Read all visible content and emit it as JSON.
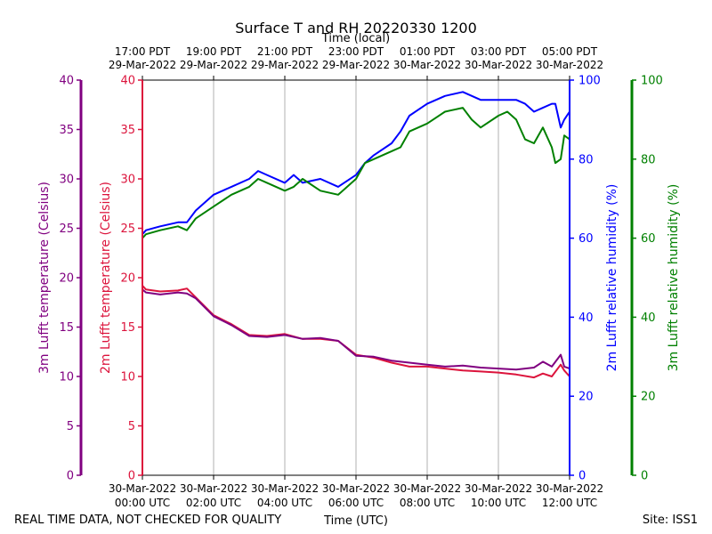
{
  "chart_data": {
    "type": "line",
    "title": "Surface T and RH 20220330 1200",
    "top_axis_label": "Time (local)",
    "bottom_axis_label": "Time (UTC)",
    "footer_left": "REAL TIME DATA, NOT CHECKED FOR QUALITY",
    "footer_right": "Site: ISS1",
    "x_ticks_utc": [
      {
        "hour": 0,
        "line1": "30-Mar-2022",
        "line2": "00:00 UTC"
      },
      {
        "hour": 2,
        "line1": "30-Mar-2022",
        "line2": "02:00 UTC"
      },
      {
        "hour": 4,
        "line1": "30-Mar-2022",
        "line2": "04:00 UTC"
      },
      {
        "hour": 6,
        "line1": "30-Mar-2022",
        "line2": "06:00 UTC"
      },
      {
        "hour": 8,
        "line1": "30-Mar-2022",
        "line2": "08:00 UTC"
      },
      {
        "hour": 10,
        "line1": "30-Mar-2022",
        "line2": "10:00 UTC"
      },
      {
        "hour": 12,
        "line1": "30-Mar-2022",
        "line2": "12:00 UTC"
      }
    ],
    "x_ticks_local": [
      {
        "hour": 0,
        "line1": "17:00 PDT",
        "line2": "29-Mar-2022"
      },
      {
        "hour": 2,
        "line1": "19:00 PDT",
        "line2": "29-Mar-2022"
      },
      {
        "hour": 4,
        "line1": "21:00 PDT",
        "line2": "29-Mar-2022"
      },
      {
        "hour": 6,
        "line1": "23:00 PDT",
        "line2": "29-Mar-2022"
      },
      {
        "hour": 8,
        "line1": "01:00 PDT",
        "line2": "30-Mar-2022"
      },
      {
        "hour": 10,
        "line1": "03:00 PDT",
        "line2": "30-Mar-2022"
      },
      {
        "hour": 12,
        "line1": "05:00 PDT",
        "line2": "30-Mar-2022"
      }
    ],
    "x_range_hours": [
      0,
      12
    ],
    "grid": "vertical at each x tick",
    "axes": {
      "t3m": {
        "label": "3m Lufft temperature (Celsius)",
        "range": [
          0,
          40
        ],
        "ticks": [
          0,
          5,
          10,
          15,
          20,
          25,
          30,
          35,
          40
        ],
        "color": "#800080",
        "position": "far left"
      },
      "t2m": {
        "label": "2m Lufft temperature (Celsius)",
        "range": [
          0,
          40
        ],
        "ticks": [
          0,
          5,
          10,
          15,
          20,
          25,
          30,
          35,
          40
        ],
        "color": "#dc143c",
        "position": "left"
      },
      "rh2m": {
        "label": "2m Lufft relative humidity (%)",
        "range": [
          0,
          100
        ],
        "ticks": [
          0,
          20,
          40,
          60,
          80,
          100
        ],
        "color": "#0000ff",
        "position": "right"
      },
      "rh3m": {
        "label": "3m Lufft relative humidity (%)",
        "range": [
          0,
          100
        ],
        "ticks": [
          0,
          20,
          40,
          60,
          80,
          100
        ],
        "color": "#008000",
        "position": "far right"
      }
    },
    "series": [
      {
        "axis": "rh2m",
        "color": "#0000ff",
        "x": [
          0,
          0.1,
          0.5,
          1.0,
          1.25,
          1.5,
          2.0,
          2.5,
          3.0,
          3.25,
          3.5,
          4.0,
          4.25,
          4.5,
          5.0,
          5.5,
          6.0,
          6.25,
          6.5,
          7.0,
          7.25,
          7.5,
          8.0,
          8.5,
          9.0,
          9.5,
          10.0,
          10.5,
          10.75,
          11.0,
          11.25,
          11.5,
          11.6,
          11.75,
          11.85,
          12.0
        ],
        "y": [
          61,
          62,
          63,
          64,
          64,
          67,
          71,
          73,
          75,
          77,
          76,
          74,
          76,
          74,
          75,
          73,
          76,
          79,
          81,
          84,
          87,
          91,
          94,
          96,
          97,
          95,
          95,
          95,
          94,
          92,
          93,
          94,
          94,
          88,
          90,
          92
        ]
      },
      {
        "axis": "rh3m",
        "color": "#008000",
        "x": [
          0,
          0.1,
          0.5,
          1.0,
          1.25,
          1.5,
          2.0,
          2.5,
          3.0,
          3.25,
          3.5,
          4.0,
          4.25,
          4.5,
          5.0,
          5.5,
          6.0,
          6.25,
          6.5,
          7.0,
          7.25,
          7.5,
          8.0,
          8.5,
          9.0,
          9.25,
          9.5,
          10.0,
          10.25,
          10.5,
          10.75,
          11.0,
          11.25,
          11.5,
          11.6,
          11.75,
          11.85,
          12.0
        ],
        "y": [
          60,
          61,
          62,
          63,
          62,
          65,
          68,
          71,
          73,
          75,
          74,
          72,
          73,
          75,
          72,
          71,
          75,
          79,
          80,
          82,
          83,
          87,
          89,
          92,
          93,
          90,
          88,
          91,
          92,
          90,
          85,
          84,
          88,
          83,
          79,
          80,
          86,
          85
        ]
      },
      {
        "axis": "t2m",
        "color": "#dc143c",
        "x": [
          0,
          0.1,
          0.5,
          1.0,
          1.25,
          1.5,
          2.0,
          2.5,
          3.0,
          3.5,
          4.0,
          4.5,
          5.0,
          5.5,
          6.0,
          6.5,
          7.0,
          7.5,
          8.0,
          8.5,
          9.0,
          9.5,
          10.0,
          10.5,
          11.0,
          11.25,
          11.5,
          11.75,
          11.85,
          12.0
        ],
        "y": [
          19.2,
          18.8,
          18.6,
          18.7,
          18.9,
          18.0,
          16.2,
          15.3,
          14.2,
          14.1,
          14.3,
          13.8,
          13.8,
          13.6,
          12.2,
          11.9,
          11.4,
          11.0,
          11.0,
          10.8,
          10.6,
          10.5,
          10.4,
          10.2,
          9.9,
          10.3,
          10.0,
          11.2,
          10.6,
          10.0
        ]
      },
      {
        "axis": "t3m",
        "color": "#800080",
        "x": [
          0,
          0.1,
          0.5,
          1.0,
          1.25,
          1.5,
          2.0,
          2.5,
          3.0,
          3.5,
          4.0,
          4.5,
          5.0,
          5.5,
          6.0,
          6.5,
          7.0,
          7.5,
          8.0,
          8.5,
          9.0,
          9.5,
          10.0,
          10.5,
          11.0,
          11.25,
          11.5,
          11.75,
          11.85,
          12.0
        ],
        "y": [
          18.8,
          18.5,
          18.3,
          18.5,
          18.4,
          17.9,
          16.1,
          15.2,
          14.1,
          14.0,
          14.2,
          13.8,
          13.9,
          13.6,
          12.1,
          12.0,
          11.6,
          11.4,
          11.2,
          11.0,
          11.1,
          10.9,
          10.8,
          10.7,
          10.9,
          11.5,
          11.0,
          12.2,
          11.0,
          10.8
        ]
      }
    ]
  }
}
